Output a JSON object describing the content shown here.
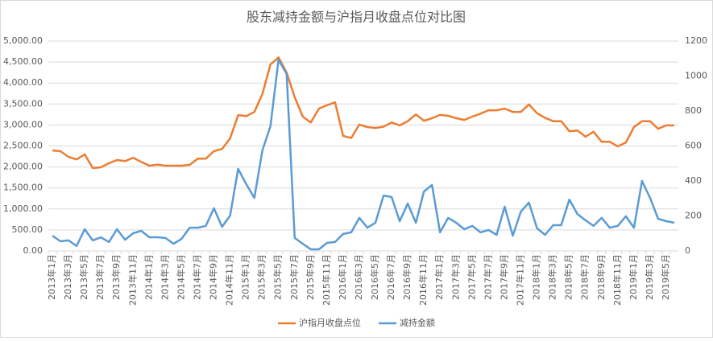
{
  "chart_data": {
    "type": "line",
    "title": "股东减持金额与沪指月收盘点位对比图",
    "categories": [
      "2013年1月",
      null,
      "2013年3月",
      null,
      "2013年5月",
      null,
      "2013年7月",
      null,
      "2013年9月",
      null,
      "2013年11月",
      null,
      "2014年1月",
      null,
      "2014年3月",
      null,
      "2014年5月",
      null,
      "2014年7月",
      null,
      "2014年9月",
      null,
      "2014年11月",
      null,
      "2015年1月",
      null,
      "2015年3月",
      null,
      "2015年5月",
      null,
      "2015年7月",
      null,
      "2015年9月",
      null,
      "2015年11月",
      null,
      "2016年1月",
      null,
      "2016年3月",
      null,
      "2016年5月",
      null,
      "2016年7月",
      null,
      "2016年9月",
      null,
      "2016年11月",
      null,
      "2017年1月",
      null,
      "2017年3月",
      null,
      "2017年5月",
      null,
      "2017年7月",
      null,
      "2017年9月",
      null,
      "2017年11月",
      null,
      "2018年1月",
      null,
      "2018年3月",
      null,
      "2018年5月",
      null,
      "2018年7月",
      null,
      "2018年9月",
      null,
      "2018年11月",
      null,
      "2019年1月",
      null,
      "2019年3月",
      null,
      "2019年5月",
      null
    ],
    "series": [
      {
        "name": "沪指月收盘点位",
        "color": "#ed7d31",
        "values": [
          2395,
          2375,
          2240,
          2180,
          2300,
          1975,
          1990,
          2090,
          2165,
          2140,
          2220,
          2120,
          2030,
          2055,
          2030,
          2030,
          2030,
          2050,
          2200,
          2200,
          2375,
          2430,
          2680,
          3235,
          3210,
          3310,
          3740,
          4440,
          4610,
          4250,
          3660,
          3200,
          3060,
          3390,
          3470,
          3540,
          2740,
          2690,
          3010,
          2950,
          2930,
          2960,
          3060,
          2990,
          3090,
          3250,
          3100,
          3160,
          3240,
          3220,
          3160,
          3120,
          3200,
          3270,
          3350,
          3350,
          3390,
          3310,
          3310,
          3490,
          3280,
          3170,
          3090,
          3090,
          2850,
          2870,
          2720,
          2840,
          2600,
          2600,
          2490,
          2580,
          2950,
          3090,
          3090,
          2910,
          2990,
          2990
        ]
      },
      {
        "name": "减持金额",
        "color": "#5b9bd5",
        "axis": "y2",
        "values": [
          87,
          55,
          60,
          28,
          124,
          60,
          78,
          51,
          124,
          64,
          101,
          115,
          78,
          78,
          74,
          41,
          69,
          133,
          133,
          143,
          244,
          138,
          202,
          469,
          382,
          303,
          575,
          713,
          1094,
          1011,
          74,
          41,
          9,
          9,
          46,
          51,
          97,
          106,
          189,
          133,
          161,
          317,
          308,
          170,
          271,
          161,
          340,
          377,
          106,
          189,
          161,
          124,
          143,
          106,
          120,
          92,
          253,
          87,
          225,
          276,
          129,
          92,
          147,
          147,
          294,
          211,
          175,
          143,
          189,
          133,
          143,
          198,
          133,
          400,
          303,
          184,
          170,
          161
        ]
      }
    ],
    "ylim": [
      0,
      5000
    ],
    "yticks": [
      {
        "value": 0,
        "label": "0.00"
      },
      {
        "value": 500,
        "label": "500.00"
      },
      {
        "value": 1000,
        "label": "1,000.00"
      },
      {
        "value": 1500,
        "label": "1,500.00"
      },
      {
        "value": 2000,
        "label": "2,000.00"
      },
      {
        "value": 2500,
        "label": "2,500.00"
      },
      {
        "value": 3000,
        "label": "3,000.00"
      },
      {
        "value": 3500,
        "label": "3,500.00"
      },
      {
        "value": 4000,
        "label": "4,000.00"
      },
      {
        "value": 4500,
        "label": "4,500.00"
      },
      {
        "value": 5000,
        "label": "5,000.00"
      }
    ],
    "y2lim": [
      0,
      1200
    ],
    "y2ticks": [
      0,
      200,
      400,
      600,
      800,
      1000,
      1200
    ],
    "grid": true,
    "legend": "bottom"
  }
}
